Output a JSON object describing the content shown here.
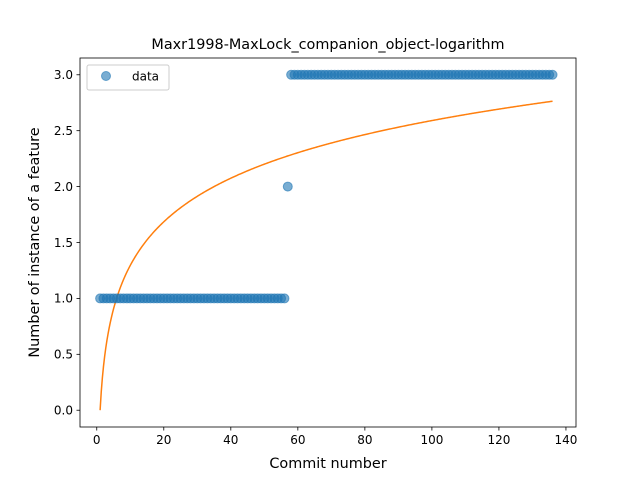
{
  "chart_data": {
    "type": "scatter",
    "title": "Maxr1998-MaxLock_companion_object-logarithm",
    "xlabel": "Commit number",
    "ylabel": "Number of instance of a feature",
    "xlim": [
      -5,
      143
    ],
    "ylim": [
      -0.15,
      3.15
    ],
    "x_ticks": [
      0,
      20,
      40,
      60,
      80,
      100,
      120,
      140
    ],
    "y_ticks": [
      0.0,
      0.5,
      1.0,
      1.5,
      2.0,
      2.5,
      3.0
    ],
    "x_tick_labels": [
      "0",
      "20",
      "40",
      "60",
      "80",
      "100",
      "120",
      "140"
    ],
    "y_tick_labels": [
      "0.0",
      "0.5",
      "1.0",
      "1.5",
      "2.0",
      "2.5",
      "3.0"
    ],
    "grid": false,
    "legend": {
      "position": "top-left",
      "entries": [
        "data"
      ]
    },
    "series": [
      {
        "name": "data",
        "kind": "scatter",
        "color": "#1f77b4",
        "segments": [
          {
            "x_from": 1,
            "x_to": 56,
            "y": 1
          },
          {
            "x_from": 57,
            "x_to": 57,
            "y": 2
          },
          {
            "x_from": 58,
            "x_to": 136,
            "y": 3
          }
        ]
      },
      {
        "kind": "line",
        "color": "#ff7f0e",
        "function": "y = 0.5625 * ln(x)",
        "x_range": [
          1,
          136
        ]
      }
    ]
  }
}
